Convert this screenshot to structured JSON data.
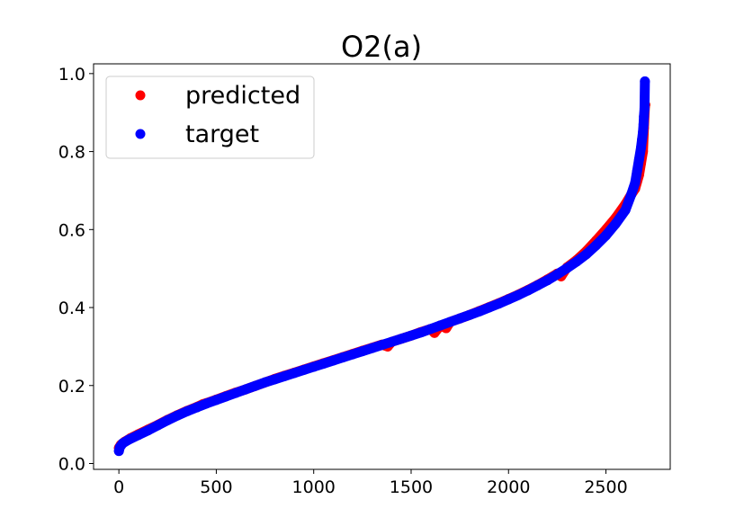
{
  "chart_data": {
    "type": "scatter",
    "title": "O2(a)",
    "xlabel": "",
    "ylabel": "",
    "xlim": [
      -130,
      2830
    ],
    "ylim": [
      -0.015,
      1.025
    ],
    "xticks": [
      0,
      500,
      1000,
      1500,
      2000,
      2500
    ],
    "yticks": [
      0.0,
      0.2,
      0.4,
      0.6,
      0.8,
      1.0
    ],
    "xtick_labels": [
      "0",
      "500",
      "1000",
      "1500",
      "2000",
      "2500"
    ],
    "ytick_labels": [
      "0.0",
      "0.2",
      "0.4",
      "0.6",
      "0.8",
      "1.0"
    ],
    "grid": false,
    "legend": {
      "position": "top-left",
      "entries": [
        "predicted",
        "target"
      ]
    },
    "series": [
      {
        "name": "predicted",
        "color": "#ff0000",
        "x": [
          0,
          10,
          30,
          60,
          100,
          150,
          200,
          250,
          300,
          350,
          400,
          430,
          450,
          500,
          550,
          600,
          650,
          700,
          750,
          800,
          850,
          900,
          950,
          1000,
          1050,
          1100,
          1150,
          1200,
          1250,
          1300,
          1350,
          1380,
          1400,
          1450,
          1500,
          1550,
          1600,
          1620,
          1650,
          1680,
          1700,
          1750,
          1800,
          1850,
          1900,
          1950,
          2000,
          2050,
          2100,
          2150,
          2200,
          2250,
          2270,
          2300,
          2350,
          2400,
          2450,
          2500,
          2550,
          2600,
          2630,
          2650,
          2670,
          2680,
          2690,
          2695,
          2700,
          2702
        ],
        "y": [
          0.04,
          0.048,
          0.056,
          0.065,
          0.075,
          0.087,
          0.099,
          0.112,
          0.124,
          0.135,
          0.145,
          0.152,
          0.155,
          0.164,
          0.173,
          0.182,
          0.19,
          0.199,
          0.208,
          0.217,
          0.225,
          0.233,
          0.241,
          0.249,
          0.257,
          0.265,
          0.273,
          0.281,
          0.289,
          0.297,
          0.305,
          0.3,
          0.312,
          0.32,
          0.328,
          0.337,
          0.345,
          0.335,
          0.354,
          0.347,
          0.363,
          0.372,
          0.381,
          0.391,
          0.401,
          0.411,
          0.422,
          0.433,
          0.445,
          0.458,
          0.472,
          0.487,
          0.48,
          0.503,
          0.522,
          0.545,
          0.572,
          0.6,
          0.63,
          0.665,
          0.69,
          0.705,
          0.74,
          0.77,
          0.8,
          0.86,
          0.915,
          0.92
        ]
      },
      {
        "name": "target",
        "color": "#0000ff",
        "x": [
          0,
          5,
          20,
          50,
          100,
          150,
          200,
          250,
          300,
          350,
          400,
          450,
          500,
          550,
          600,
          650,
          700,
          750,
          800,
          850,
          900,
          950,
          1000,
          1050,
          1100,
          1150,
          1200,
          1250,
          1300,
          1350,
          1400,
          1450,
          1500,
          1550,
          1600,
          1650,
          1700,
          1750,
          1800,
          1850,
          1900,
          1950,
          2000,
          2050,
          2100,
          2150,
          2200,
          2250,
          2300,
          2350,
          2400,
          2450,
          2500,
          2550,
          2600,
          2630,
          2650,
          2660,
          2670,
          2680,
          2685,
          2690,
          2693,
          2695,
          2698,
          2700
        ],
        "y": [
          0.032,
          0.042,
          0.052,
          0.061,
          0.073,
          0.085,
          0.098,
          0.111,
          0.123,
          0.134,
          0.144,
          0.154,
          0.163,
          0.172,
          0.181,
          0.19,
          0.199,
          0.208,
          0.216,
          0.224,
          0.232,
          0.24,
          0.248,
          0.256,
          0.264,
          0.272,
          0.28,
          0.288,
          0.296,
          0.304,
          0.312,
          0.32,
          0.328,
          0.336,
          0.345,
          0.354,
          0.363,
          0.372,
          0.381,
          0.39,
          0.4,
          0.41,
          0.421,
          0.432,
          0.444,
          0.457,
          0.47,
          0.485,
          0.501,
          0.518,
          0.537,
          0.56,
          0.585,
          0.615,
          0.65,
          0.69,
          0.72,
          0.75,
          0.78,
          0.81,
          0.83,
          0.85,
          0.87,
          0.89,
          0.91,
          0.98
        ]
      }
    ]
  }
}
